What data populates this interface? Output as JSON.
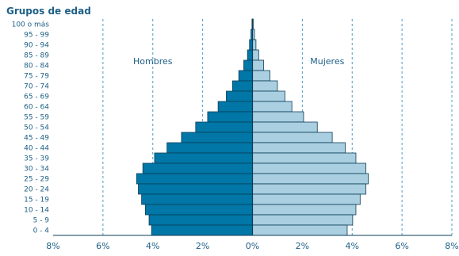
{
  "chart_data": {
    "type": "bar",
    "orientation": "horizontal-population-pyramid",
    "ylabel": "Grupos de edad",
    "categories": [
      "100 o más",
      "95 - 99",
      "90 - 94",
      "85 - 89",
      "80 - 84",
      "75 - 79",
      "70 - 74",
      "65 - 69",
      "60 - 64",
      "55 - 59",
      "50 - 54",
      "45 - 49",
      "40 - 44",
      "35 - 39",
      "30 - 34",
      "25 - 29",
      "20 - 24",
      "15 - 19",
      "10 - 14",
      "5 - 9",
      "0 - 4"
    ],
    "series": [
      {
        "name": "Hombres",
        "color": "#0077a6",
        "values": [
          0.02,
          0.06,
          0.12,
          0.2,
          0.35,
          0.55,
          0.8,
          1.05,
          1.38,
          1.8,
          2.28,
          2.85,
          3.43,
          3.93,
          4.4,
          4.65,
          4.58,
          4.45,
          4.3,
          4.15,
          4.05
        ]
      },
      {
        "name": "Mujeres",
        "color": "#a9cfe0",
        "values": [
          0.03,
          0.08,
          0.14,
          0.25,
          0.45,
          0.7,
          1.0,
          1.3,
          1.58,
          2.05,
          2.6,
          3.2,
          3.72,
          4.15,
          4.55,
          4.65,
          4.55,
          4.32,
          4.15,
          4.02,
          3.8
        ]
      }
    ],
    "xlim": [
      -8,
      8
    ],
    "xticks": [
      "8%",
      "6%",
      "4%",
      "2%",
      "0%",
      "2%",
      "4%",
      "6%",
      "8%"
    ],
    "grid": "dashed vertical",
    "legend": "inline labels"
  }
}
